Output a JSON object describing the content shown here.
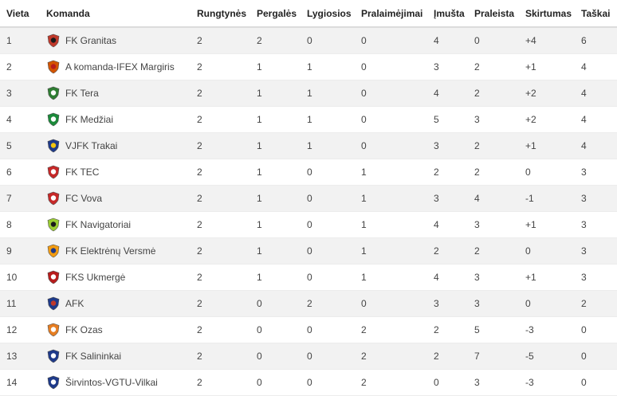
{
  "table": {
    "headers": [
      "Vieta",
      "Komanda",
      "Rungtynės",
      "Pergalės",
      "Lygiosios",
      "Pralaimėjimai",
      "Įmušta",
      "Praleista",
      "Skirtumas",
      "Taškai"
    ],
    "rows": [
      {
        "pos": "1",
        "team": "FK Granitas",
        "logo": "granitas-crest-icon",
        "played": "2",
        "won": "2",
        "drawn": "0",
        "lost": "0",
        "scored": "4",
        "conceded": "0",
        "diff": "+4",
        "points": "6",
        "c1": "#c0392b",
        "c2": "#1a1a1a"
      },
      {
        "pos": "2",
        "team": "A komanda-IFEX Margiris",
        "logo": "margiris-crest-icon",
        "played": "2",
        "won": "1",
        "drawn": "1",
        "lost": "0",
        "scored": "3",
        "conceded": "2",
        "diff": "+1",
        "points": "4",
        "c1": "#d35400",
        "c2": "#b71c1c"
      },
      {
        "pos": "3",
        "team": "FK Tera",
        "logo": "tera-crest-icon",
        "played": "2",
        "won": "1",
        "drawn": "1",
        "lost": "0",
        "scored": "4",
        "conceded": "2",
        "diff": "+2",
        "points": "4",
        "c1": "#2e7d32",
        "c2": "#ffffff"
      },
      {
        "pos": "4",
        "team": "FK Medžiai",
        "logo": "medziai-crest-icon",
        "played": "2",
        "won": "1",
        "drawn": "1",
        "lost": "0",
        "scored": "5",
        "conceded": "3",
        "diff": "+2",
        "points": "4",
        "c1": "#1b8a3a",
        "c2": "#ffffff"
      },
      {
        "pos": "5",
        "team": "VJFK Trakai",
        "logo": "trakai-crest-icon",
        "played": "2",
        "won": "1",
        "drawn": "1",
        "lost": "0",
        "scored": "3",
        "conceded": "2",
        "diff": "+1",
        "points": "4",
        "c1": "#1e3a8a",
        "c2": "#f1c40f"
      },
      {
        "pos": "6",
        "team": "FK TEC",
        "logo": "tec-crest-icon",
        "played": "2",
        "won": "1",
        "drawn": "0",
        "lost": "1",
        "scored": "2",
        "conceded": "2",
        "diff": "0",
        "points": "3",
        "c1": "#c62828",
        "c2": "#ffffff"
      },
      {
        "pos": "7",
        "team": "FC Vova",
        "logo": "vova-crest-icon",
        "played": "2",
        "won": "1",
        "drawn": "0",
        "lost": "1",
        "scored": "3",
        "conceded": "4",
        "diff": "-1",
        "points": "3",
        "c1": "#c62828",
        "c2": "#ffffff"
      },
      {
        "pos": "8",
        "team": "FK Navigatoriai",
        "logo": "navigatoriai-crest-icon",
        "played": "2",
        "won": "1",
        "drawn": "0",
        "lost": "1",
        "scored": "4",
        "conceded": "3",
        "diff": "+1",
        "points": "3",
        "c1": "#9acd32",
        "c2": "#1a1a1a"
      },
      {
        "pos": "9",
        "team": "FK Elektrėnų Versmė",
        "logo": "versme-crest-icon",
        "played": "2",
        "won": "1",
        "drawn": "0",
        "lost": "1",
        "scored": "2",
        "conceded": "2",
        "diff": "0",
        "points": "3",
        "c1": "#f39c12",
        "c2": "#1e3a8a"
      },
      {
        "pos": "10",
        "team": "FKS Ukmergė",
        "logo": "ukmerge-crest-icon",
        "played": "2",
        "won": "1",
        "drawn": "0",
        "lost": "1",
        "scored": "4",
        "conceded": "3",
        "diff": "+1",
        "points": "3",
        "c1": "#b71c1c",
        "c2": "#ffffff"
      },
      {
        "pos": "11",
        "team": "AFK",
        "logo": "afk-crest-icon",
        "played": "2",
        "won": "0",
        "drawn": "2",
        "lost": "0",
        "scored": "3",
        "conceded": "3",
        "diff": "0",
        "points": "2",
        "c1": "#1e3a8a",
        "c2": "#c0392b"
      },
      {
        "pos": "12",
        "team": "FK Ozas",
        "logo": "ozas-crest-icon",
        "played": "2",
        "won": "0",
        "drawn": "0",
        "lost": "2",
        "scored": "2",
        "conceded": "5",
        "diff": "-3",
        "points": "0",
        "c1": "#e67e22",
        "c2": "#ffffff"
      },
      {
        "pos": "13",
        "team": "FK Salininkai",
        "logo": "salininkai-crest-icon",
        "played": "2",
        "won": "0",
        "drawn": "0",
        "lost": "2",
        "scored": "2",
        "conceded": "7",
        "diff": "-5",
        "points": "0",
        "c1": "#1e3a8a",
        "c2": "#ffffff"
      },
      {
        "pos": "14",
        "team": "Širvintos-VGTU-Vilkai",
        "logo": "sirvintos-crest-icon",
        "played": "2",
        "won": "0",
        "drawn": "0",
        "lost": "2",
        "scored": "0",
        "conceded": "3",
        "diff": "-3",
        "points": "0",
        "c1": "#1e3a8a",
        "c2": "#ffffff"
      }
    ]
  }
}
